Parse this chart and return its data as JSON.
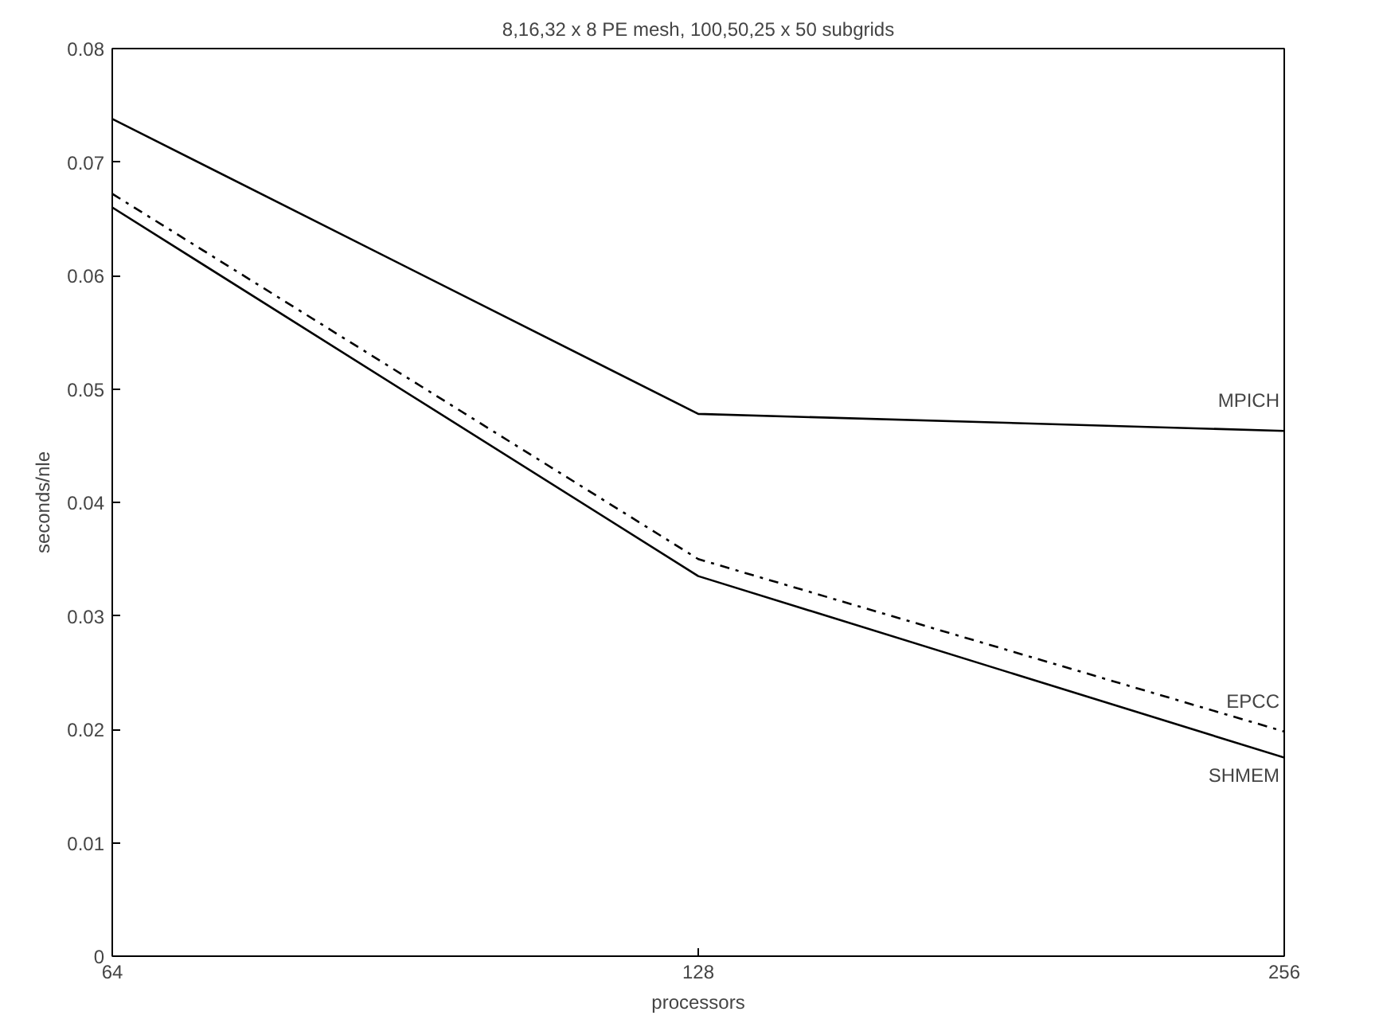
{
  "chart_data": {
    "type": "line",
    "title": "8,16,32 x 8 PE mesh, 100,50,25 x 50 subgrids",
    "xlabel": "processors",
    "ylabel": "seconds/nle",
    "x": [
      64,
      128,
      256
    ],
    "log": "x",
    "xlim": [
      64,
      256
    ],
    "xticks": [
      64,
      128,
      256
    ],
    "ylim": [
      0,
      0.08
    ],
    "yticks": [
      0,
      0.01,
      0.02,
      0.03,
      0.04,
      0.05,
      0.06,
      0.07,
      0.08
    ],
    "grid": false,
    "marker": "none",
    "series": [
      {
        "name": "MPICH",
        "color": "#000000",
        "values": [
          0.0738,
          0.0478,
          0.0463
        ],
        "line_style": "solid"
      },
      {
        "name": "EPCC",
        "color": "#000000",
        "values": [
          0.0672,
          0.035,
          0.0198
        ],
        "line_style": "dashdot"
      },
      {
        "name": "SHMEM",
        "color": "#000000",
        "values": [
          0.066,
          0.0335,
          0.0175
        ],
        "line_style": "solid"
      }
    ]
  }
}
